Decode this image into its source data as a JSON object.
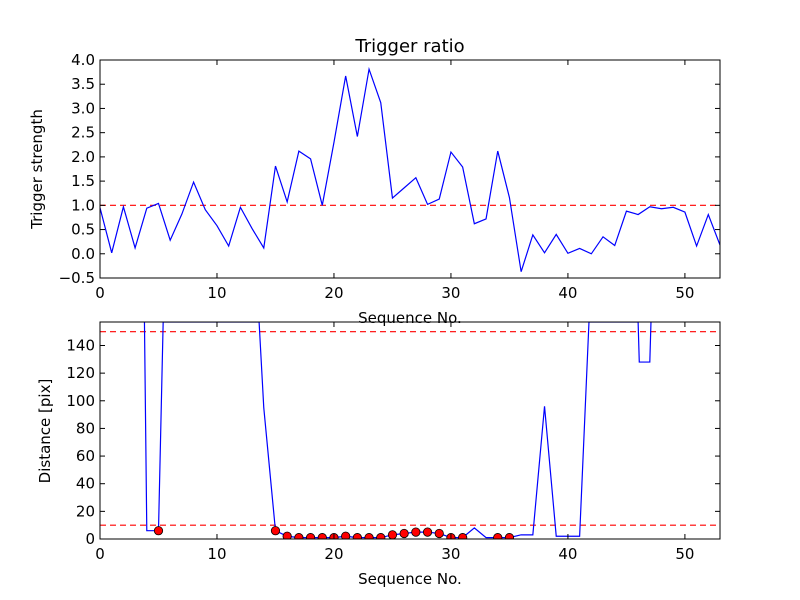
{
  "chart_data": [
    {
      "type": "line",
      "title": "Trigger ratio",
      "xlabel": "Sequence No.",
      "ylabel": "Trigger strength",
      "xlim": [
        0,
        53
      ],
      "ylim": [
        -0.5,
        4.0
      ],
      "xticks": [
        0,
        10,
        20,
        30,
        40,
        50
      ],
      "xtick_labels": [
        "0",
        "10",
        "20",
        "30",
        "40",
        "50"
      ],
      "yticks": [
        -0.5,
        0.0,
        0.5,
        1.0,
        1.5,
        2.0,
        2.5,
        3.0,
        3.5,
        4.0
      ],
      "ytick_labels": [
        "−0.5",
        "0.0",
        "0.5",
        "1.0",
        "1.5",
        "2.0",
        "2.5",
        "3.0",
        "3.5",
        "4.0"
      ],
      "grid": false,
      "series": [
        {
          "color": "#0000ff",
          "x": [
            0,
            1,
            2,
            3,
            4,
            5,
            6,
            7,
            8,
            9,
            10,
            11,
            12,
            13,
            14,
            15,
            16,
            17,
            18,
            19,
            20,
            21,
            22,
            23,
            24,
            25,
            26,
            27,
            28,
            29,
            30,
            31,
            32,
            33,
            34,
            35,
            36,
            37,
            38,
            39,
            40,
            41,
            42,
            43,
            44,
            45,
            46,
            47,
            48,
            49,
            50,
            51,
            52,
            53
          ],
          "y": [
            0.95,
            0.02,
            0.97,
            0.12,
            0.94,
            1.04,
            0.28,
            0.82,
            1.48,
            0.91,
            0.58,
            0.16,
            0.96,
            0.52,
            0.12,
            1.81,
            1.07,
            2.12,
            1.96,
            1.0,
            2.3,
            3.67,
            2.42,
            3.81,
            3.12,
            1.15,
            1.36,
            1.57,
            1.02,
            1.13,
            2.1,
            1.79,
            0.62,
            0.72,
            2.12,
            1.16,
            -0.37,
            0.39,
            0.02,
            0.4,
            0.01,
            0.11,
            0.0,
            0.35,
            0.17,
            0.88,
            0.81,
            0.97,
            0.93,
            0.96,
            0.86,
            0.16,
            0.81,
            0.18
          ]
        }
      ],
      "hlines": [
        {
          "y": 1.0,
          "color": "#ff0000",
          "style": "dashed"
        }
      ]
    },
    {
      "type": "line",
      "title": "",
      "xlabel": "Sequence No.",
      "ylabel": "Distance [pix]",
      "xlim": [
        0,
        53
      ],
      "ylim": [
        0,
        157
      ],
      "xticks": [
        0,
        10,
        20,
        30,
        40,
        50
      ],
      "xtick_labels": [
        "0",
        "10",
        "20",
        "30",
        "40",
        "50"
      ],
      "yticks": [
        0,
        20,
        40,
        60,
        80,
        100,
        120,
        140
      ],
      "ytick_labels": [
        "0",
        "20",
        "40",
        "60",
        "80",
        "100",
        "120",
        "140"
      ],
      "grid": false,
      "series": [
        {
          "color": "#0000ff",
          "x": [
            3.8,
            4,
            5,
            5.4,
            13.6,
            14,
            15,
            16,
            17,
            18,
            19,
            20,
            21,
            22,
            23,
            24,
            25,
            26,
            27,
            28,
            29,
            30,
            31,
            32,
            33,
            34,
            35,
            36,
            37,
            38,
            39,
            40,
            41,
            41.8,
            46,
            46.1,
            47,
            47.1
          ],
          "y": [
            157,
            6,
            6,
            157,
            157,
            95,
            6,
            2,
            1,
            1,
            1,
            1,
            2,
            1,
            1,
            1,
            3,
            4,
            5,
            5,
            4,
            1,
            1,
            8,
            1,
            1,
            1,
            3,
            3,
            96,
            2,
            2,
            2,
            157,
            157,
            128,
            128,
            157
          ]
        }
      ],
      "markers": {
        "color": "#ff0000",
        "x": [
          5,
          15,
          16,
          17,
          18,
          19,
          20,
          21,
          22,
          23,
          24,
          25,
          26,
          27,
          28,
          29,
          30,
          31,
          34,
          35
        ],
        "y": [
          6,
          6,
          2,
          1,
          1,
          1,
          1,
          2,
          1,
          1,
          1,
          3,
          4,
          5,
          5,
          4,
          1,
          1,
          1,
          1
        ]
      },
      "hlines": [
        {
          "y": 150,
          "color": "#ff0000",
          "style": "dashed"
        },
        {
          "y": 10,
          "color": "#ff0000",
          "style": "dashed"
        }
      ]
    }
  ]
}
